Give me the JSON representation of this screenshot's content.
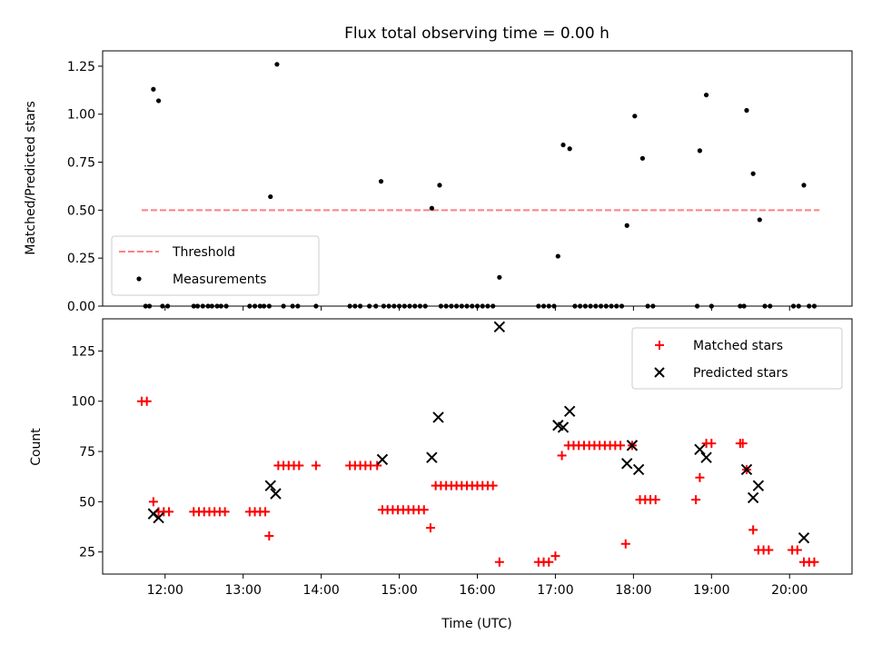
{
  "chart_data": [
    {
      "type": "scatter",
      "title": "Flux total observing time = 0.00 h",
      "xlabel": "",
      "ylabel": "Matched/Predicted stars",
      "xlim": [
        "11:12",
        "20:48"
      ],
      "ylim": [
        0,
        1.33
      ],
      "y_ticks": [
        0.0,
        0.25,
        0.5,
        0.75,
        1.0,
        1.25
      ],
      "y_tick_labels": [
        "0.00",
        "0.25",
        "0.50",
        "0.75",
        "1.00",
        "1.25"
      ],
      "x_ticks": [
        "12:00",
        "13:00",
        "14:00",
        "15:00",
        "16:00",
        "17:00",
        "18:00",
        "19:00",
        "20:00"
      ],
      "x_tick_labels_shown": false,
      "legend_position": "bottom-left",
      "series": [
        {
          "name": "Threshold",
          "style": "dashed-line",
          "color": "#ff7f7f",
          "points": [
            [
              "11:42",
              0.5
            ],
            [
              "20:23",
              0.5
            ]
          ]
        },
        {
          "name": "Measurements",
          "style": "dot",
          "color": "#000000",
          "points": [
            [
              "11:45",
              0.0
            ],
            [
              "11:48",
              0.0
            ],
            [
              "11:51",
              1.13
            ],
            [
              "11:55",
              1.07
            ],
            [
              "11:58",
              0.0
            ],
            [
              "12:02",
              0.0
            ],
            [
              "12:22",
              0.0
            ],
            [
              "12:25",
              0.0
            ],
            [
              "12:29",
              0.0
            ],
            [
              "12:33",
              0.0
            ],
            [
              "12:36",
              0.0
            ],
            [
              "12:40",
              0.0
            ],
            [
              "12:43",
              0.0
            ],
            [
              "12:47",
              0.0
            ],
            [
              "13:05",
              0.0
            ],
            [
              "13:09",
              0.0
            ],
            [
              "13:13",
              0.0
            ],
            [
              "13:16",
              0.0
            ],
            [
              "13:20",
              0.0
            ],
            [
              "13:21",
              0.57
            ],
            [
              "13:26",
              1.26
            ],
            [
              "13:31",
              0.0
            ],
            [
              "13:38",
              0.0
            ],
            [
              "13:42",
              0.0
            ],
            [
              "13:56",
              0.0
            ],
            [
              "14:22",
              0.0
            ],
            [
              "14:26",
              0.0
            ],
            [
              "14:30",
              0.0
            ],
            [
              "14:37",
              0.0
            ],
            [
              "14:42",
              0.0
            ],
            [
              "14:46",
              0.65
            ],
            [
              "14:48",
              0.0
            ],
            [
              "14:52",
              0.0
            ],
            [
              "14:56",
              0.0
            ],
            [
              "15:00",
              0.0
            ],
            [
              "15:04",
              0.0
            ],
            [
              "15:08",
              0.0
            ],
            [
              "15:12",
              0.0
            ],
            [
              "15:16",
              0.0
            ],
            [
              "15:20",
              0.0
            ],
            [
              "15:25",
              0.51
            ],
            [
              "15:31",
              0.63
            ],
            [
              "15:32",
              0.0
            ],
            [
              "15:36",
              0.0
            ],
            [
              "15:40",
              0.0
            ],
            [
              "15:44",
              0.0
            ],
            [
              "15:48",
              0.0
            ],
            [
              "15:52",
              0.0
            ],
            [
              "15:56",
              0.0
            ],
            [
              "16:00",
              0.0
            ],
            [
              "16:04",
              0.0
            ],
            [
              "16:08",
              0.0
            ],
            [
              "16:12",
              0.0
            ],
            [
              "16:17",
              0.15
            ],
            [
              "16:47",
              0.0
            ],
            [
              "16:51",
              0.0
            ],
            [
              "16:55",
              0.0
            ],
            [
              "16:59",
              0.0
            ],
            [
              "17:02",
              0.26
            ],
            [
              "17:06",
              0.84
            ],
            [
              "17:11",
              0.82
            ],
            [
              "17:15",
              0.0
            ],
            [
              "17:19",
              0.0
            ],
            [
              "17:23",
              0.0
            ],
            [
              "17:27",
              0.0
            ],
            [
              "17:31",
              0.0
            ],
            [
              "17:35",
              0.0
            ],
            [
              "17:39",
              0.0
            ],
            [
              "17:43",
              0.0
            ],
            [
              "17:47",
              0.0
            ],
            [
              "17:51",
              0.0
            ],
            [
              "17:55",
              0.42
            ],
            [
              "18:01",
              0.99
            ],
            [
              "18:07",
              0.77
            ],
            [
              "18:11",
              0.0
            ],
            [
              "18:15",
              0.0
            ],
            [
              "18:49",
              0.0
            ],
            [
              "18:51",
              0.81
            ],
            [
              "18:56",
              1.1
            ],
            [
              "19:00",
              0.0
            ],
            [
              "19:22",
              0.0
            ],
            [
              "19:25",
              0.0
            ],
            [
              "19:27",
              1.02
            ],
            [
              "19:32",
              0.69
            ],
            [
              "19:37",
              0.45
            ],
            [
              "19:41",
              0.0
            ],
            [
              "19:45",
              0.0
            ],
            [
              "20:03",
              0.0
            ],
            [
              "20:07",
              0.0
            ],
            [
              "20:11",
              0.63
            ],
            [
              "20:15",
              0.0
            ],
            [
              "20:19",
              0.0
            ]
          ]
        }
      ]
    },
    {
      "type": "scatter",
      "title": "",
      "xlabel": "Time (UTC)",
      "ylabel": "Count",
      "xlim": [
        "11:12",
        "20:48"
      ],
      "ylim": [
        14,
        141
      ],
      "y_ticks": [
        25,
        50,
        75,
        100,
        125
      ],
      "y_tick_labels": [
        "25",
        "50",
        "75",
        "100",
        "125"
      ],
      "x_ticks": [
        "12:00",
        "13:00",
        "14:00",
        "15:00",
        "16:00",
        "17:00",
        "18:00",
        "19:00",
        "20:00"
      ],
      "x_tick_labels": [
        "12:00",
        "13:00",
        "14:00",
        "15:00",
        "16:00",
        "17:00",
        "18:00",
        "19:00",
        "20:00"
      ],
      "legend_position": "top-right",
      "series": [
        {
          "name": "Matched stars",
          "marker": "plus",
          "color": "#ff0000",
          "points": [
            [
              "11:42",
              100
            ],
            [
              "11:46",
              100
            ],
            [
              "11:51",
              50
            ],
            [
              "11:55",
              45
            ],
            [
              "11:59",
              45
            ],
            [
              "12:03",
              45
            ],
            [
              "12:22",
              45
            ],
            [
              "12:26",
              45
            ],
            [
              "12:30",
              45
            ],
            [
              "12:34",
              45
            ],
            [
              "12:38",
              45
            ],
            [
              "12:42",
              45
            ],
            [
              "12:46",
              45
            ],
            [
              "13:05",
              45
            ],
            [
              "13:09",
              45
            ],
            [
              "13:13",
              45
            ],
            [
              "13:17",
              45
            ],
            [
              "13:20",
              33
            ],
            [
              "13:27",
              68
            ],
            [
              "13:31",
              68
            ],
            [
              "13:35",
              68
            ],
            [
              "13:39",
              68
            ],
            [
              "13:43",
              68
            ],
            [
              "13:56",
              68
            ],
            [
              "14:22",
              68
            ],
            [
              "14:26",
              68
            ],
            [
              "14:30",
              68
            ],
            [
              "14:34",
              68
            ],
            [
              "14:38",
              68
            ],
            [
              "14:43",
              68
            ],
            [
              "14:47",
              46
            ],
            [
              "14:51",
              46
            ],
            [
              "14:55",
              46
            ],
            [
              "14:59",
              46
            ],
            [
              "15:03",
              46
            ],
            [
              "15:07",
              46
            ],
            [
              "15:11",
              46
            ],
            [
              "15:15",
              46
            ],
            [
              "15:19",
              46
            ],
            [
              "15:24",
              37
            ],
            [
              "15:28",
              58
            ],
            [
              "15:32",
              58
            ],
            [
              "15:36",
              58
            ],
            [
              "15:40",
              58
            ],
            [
              "15:44",
              58
            ],
            [
              "15:48",
              58
            ],
            [
              "15:52",
              58
            ],
            [
              "15:56",
              58
            ],
            [
              "16:00",
              58
            ],
            [
              "16:04",
              58
            ],
            [
              "16:08",
              58
            ],
            [
              "16:12",
              58
            ],
            [
              "16:17",
              20
            ],
            [
              "16:47",
              20
            ],
            [
              "16:51",
              20
            ],
            [
              "16:55",
              20
            ],
            [
              "17:00",
              23
            ],
            [
              "17:05",
              73
            ],
            [
              "17:10",
              78
            ],
            [
              "17:14",
              78
            ],
            [
              "17:18",
              78
            ],
            [
              "17:22",
              78
            ],
            [
              "17:26",
              78
            ],
            [
              "17:30",
              78
            ],
            [
              "17:34",
              78
            ],
            [
              "17:38",
              78
            ],
            [
              "17:42",
              78
            ],
            [
              "17:46",
              78
            ],
            [
              "17:50",
              78
            ],
            [
              "17:54",
              29
            ],
            [
              "17:59",
              78
            ],
            [
              "18:05",
              51
            ],
            [
              "18:09",
              51
            ],
            [
              "18:13",
              51
            ],
            [
              "18:17",
              51
            ],
            [
              "18:48",
              51
            ],
            [
              "18:51",
              62
            ],
            [
              "18:56",
              79
            ],
            [
              "19:00",
              79
            ],
            [
              "19:22",
              79
            ],
            [
              "19:24",
              79
            ],
            [
              "19:27",
              66
            ],
            [
              "19:32",
              36
            ],
            [
              "19:36",
              26
            ],
            [
              "19:40",
              26
            ],
            [
              "19:44",
              26
            ],
            [
              "20:02",
              26
            ],
            [
              "20:06",
              26
            ],
            [
              "20:11",
              20
            ],
            [
              "20:15",
              20
            ],
            [
              "20:19",
              20
            ]
          ]
        },
        {
          "name": "Predicted stars",
          "marker": "x",
          "color": "#000000",
          "points": [
            [
              "11:51",
              44
            ],
            [
              "11:55",
              42
            ],
            [
              "13:21",
              58
            ],
            [
              "13:25",
              54
            ],
            [
              "14:47",
              71
            ],
            [
              "15:25",
              72
            ],
            [
              "15:30",
              92
            ],
            [
              "16:17",
              137
            ],
            [
              "17:02",
              88
            ],
            [
              "17:06",
              87
            ],
            [
              "17:11",
              95
            ],
            [
              "17:55",
              69
            ],
            [
              "17:59",
              78
            ],
            [
              "18:04",
              66
            ],
            [
              "18:51",
              76
            ],
            [
              "18:56",
              72
            ],
            [
              "19:27",
              66
            ],
            [
              "19:32",
              52
            ],
            [
              "19:36",
              58
            ],
            [
              "20:11",
              32
            ]
          ]
        }
      ]
    }
  ]
}
